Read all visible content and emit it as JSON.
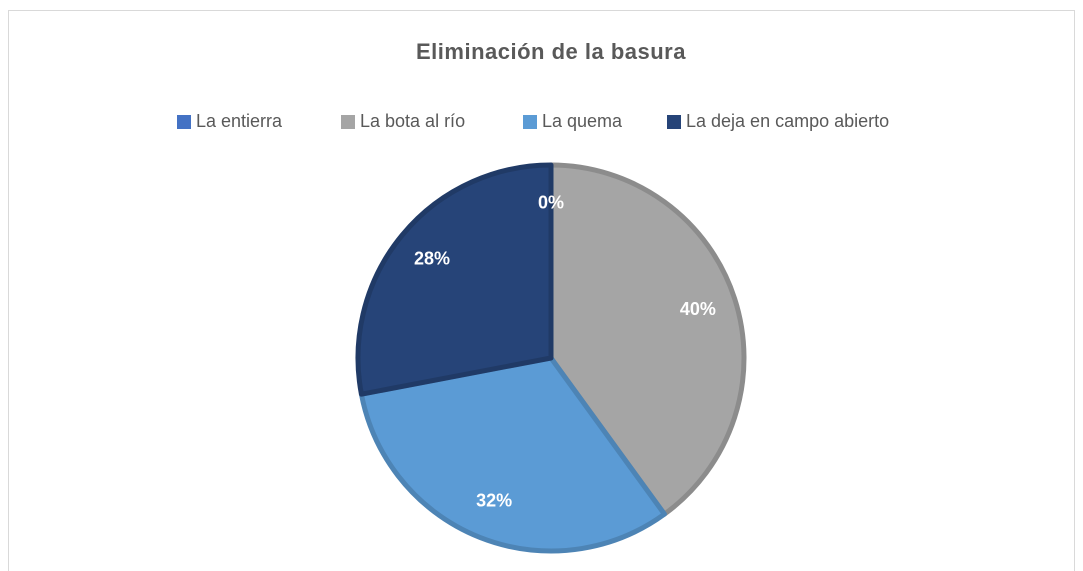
{
  "chart_data": {
    "type": "pie",
    "title": "Eliminación de la basura",
    "categories": [
      "La entierra",
      "La bota al río",
      "La quema",
      "La deja en campo abierto"
    ],
    "values": [
      0,
      40,
      32,
      28
    ],
    "value_labels": [
      "0%",
      "40%",
      "32%",
      "28%"
    ],
    "colors": [
      "#4472c4",
      "#a5a5a5",
      "#5b9bd5",
      "#264478"
    ],
    "legend": "top"
  }
}
